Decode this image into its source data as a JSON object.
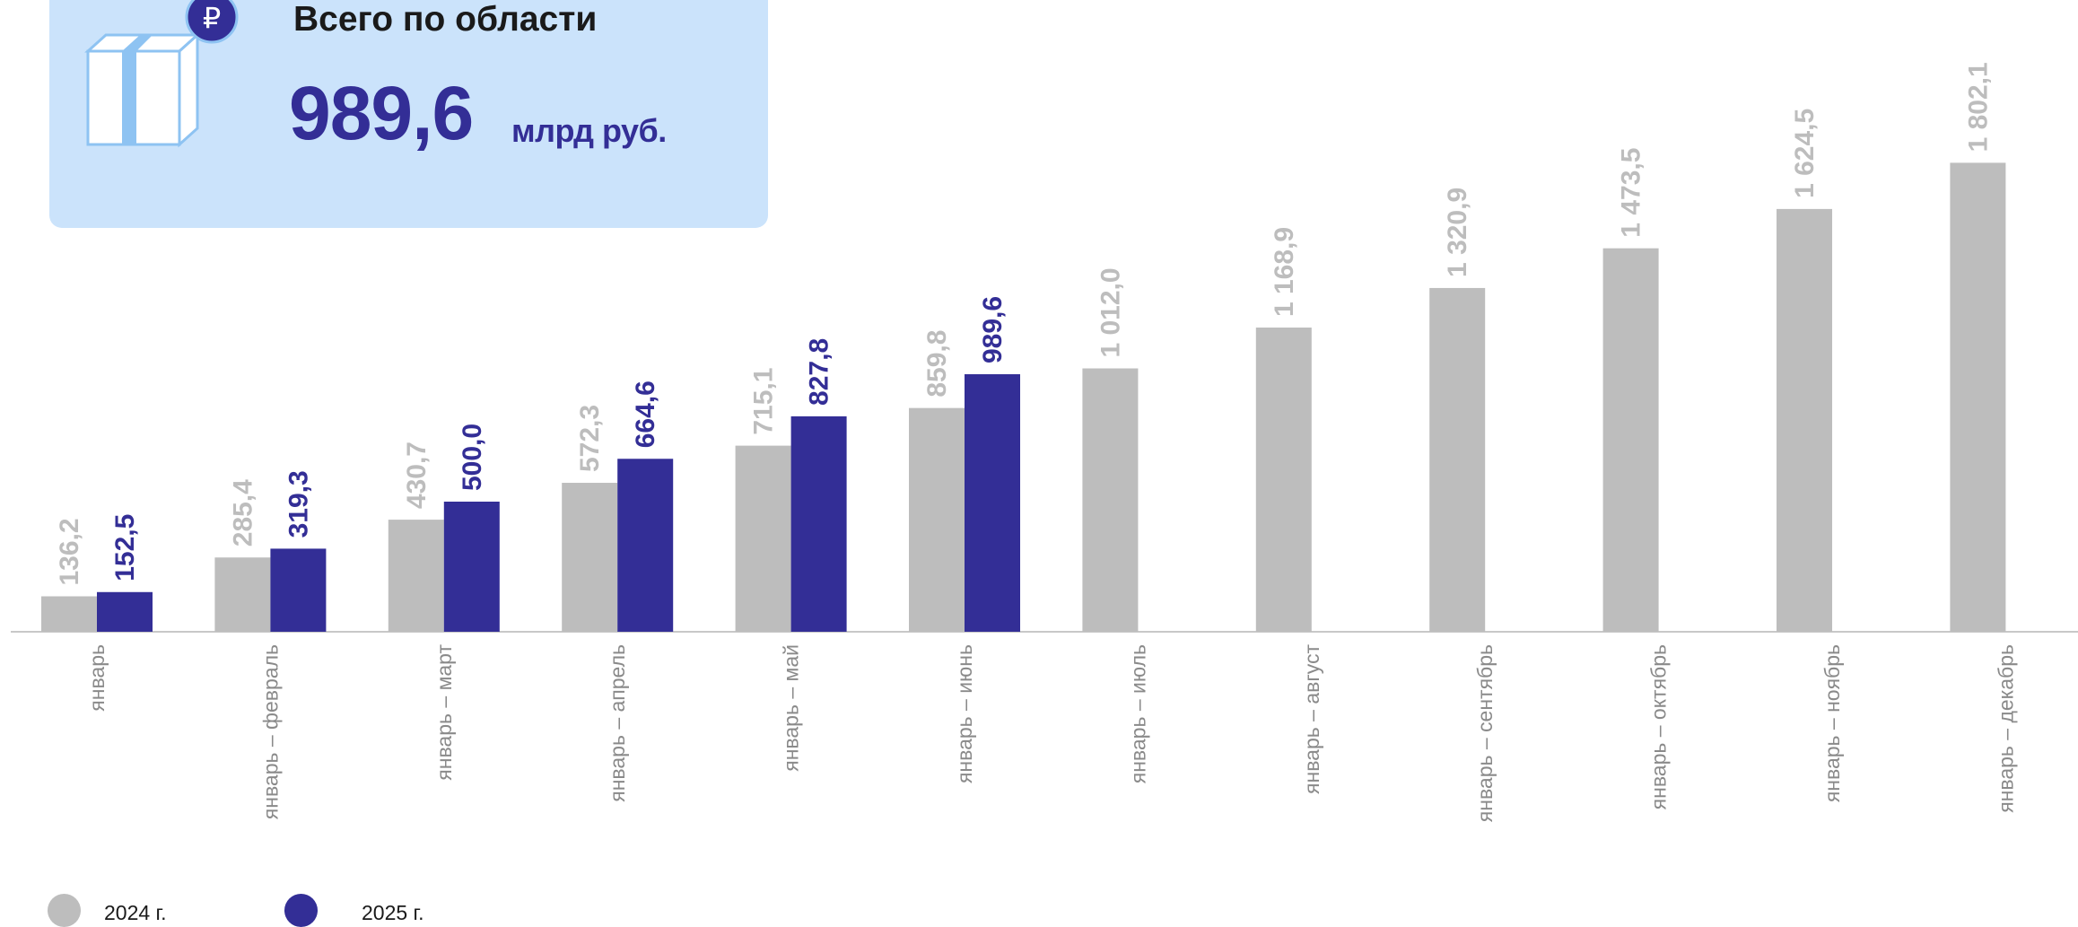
{
  "summary": {
    "title": "Всего по области",
    "value": "989,6",
    "unit": "млрд руб.",
    "icon": "gift-ruble-icon"
  },
  "colors": {
    "prev": "#bdbdbd",
    "curr": "#332e96",
    "card": "#cbe3fb"
  },
  "legend": [
    {
      "label": "2024 г.",
      "color": "#bdbdbd"
    },
    {
      "label": "2025 г.",
      "color": "#332e96"
    }
  ],
  "chart_data": {
    "type": "bar",
    "categories": [
      "январь",
      "январь – февраль",
      "январь – март",
      "январь – апрель",
      "январь – май",
      "январь – июнь",
      "январь – июль",
      "январь – август",
      "январь – сентябрь",
      "январь – октябрь",
      "январь – ноябрь",
      "январь – декабрь"
    ],
    "series": [
      {
        "name": "2024 г.",
        "values": [
          136.2,
          285.4,
          430.7,
          572.3,
          715.1,
          859.8,
          1012.0,
          1168.9,
          1320.9,
          1473.5,
          1624.5,
          1802.1
        ],
        "labels": [
          "136,2",
          "285,4",
          "430,7",
          "572,3",
          "715,1",
          "859,8",
          "1 012,0",
          "1 168,9",
          "1 320,9",
          "1 473,5",
          "1 624,5",
          "1 802,1"
        ]
      },
      {
        "name": "2025 г.",
        "values": [
          152.5,
          319.3,
          500.0,
          664.6,
          827.8,
          989.6,
          null,
          null,
          null,
          null,
          null,
          null
        ],
        "labels": [
          "152,5",
          "319,3",
          "500,0",
          "664,6",
          "827,8",
          "989,6",
          "",
          "",
          "",
          "",
          "",
          ""
        ]
      }
    ],
    "legend_position": "bottom-left",
    "grid": false
  }
}
